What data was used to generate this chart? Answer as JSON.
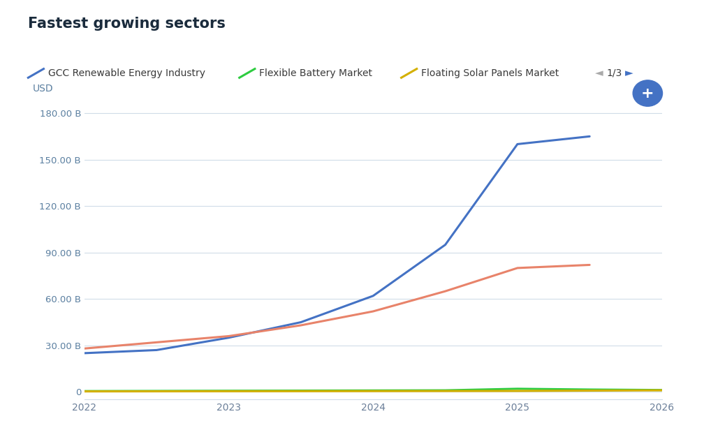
{
  "title": "Fastest growing sectors",
  "ylabel": "USD",
  "background_color": "#ffffff",
  "plot_bg_color": "#ffffff",
  "legend_entries": [
    {
      "label": "GCC Renewable Energy Industry",
      "color": "#4472c4"
    },
    {
      "label": "Flexible Battery Market",
      "color": "#2ecc40"
    },
    {
      "label": "Floating Solar Panels Market",
      "color": "#d4b000"
    }
  ],
  "page_indicator": "1/3",
  "yticks": [
    0,
    30,
    60,
    90,
    120,
    150,
    180
  ],
  "ytick_labels": [
    "0",
    "30.00 B",
    "60.00 B",
    "90.00 B",
    "120.00 B",
    "150.00 B",
    "180.00 B"
  ],
  "xticks": [
    2022,
    2023,
    2024,
    2025,
    2026
  ],
  "xlim": [
    2022,
    2026
  ],
  "ylim": [
    -5,
    190
  ],
  "series": [
    {
      "name": "GCC Renewable Energy Industry",
      "color": "#4472c4",
      "x": [
        2022,
        2022.5,
        2023,
        2023.5,
        2024,
        2024.5,
        2025,
        2025.5
      ],
      "y": [
        25,
        27,
        35,
        45,
        62,
        95,
        160,
        165
      ]
    },
    {
      "name": "unknown_orange",
      "color": "#e8836a",
      "x": [
        2022,
        2022.5,
        2023,
        2023.5,
        2024,
        2024.5,
        2025,
        2025.5
      ],
      "y": [
        28,
        32,
        36,
        43,
        52,
        65,
        80,
        82
      ]
    },
    {
      "name": "Flexible Battery Market",
      "color": "#2ecc40",
      "x": [
        2022,
        2022.5,
        2023,
        2023.5,
        2024,
        2024.5,
        2025,
        2025.5,
        2026
      ],
      "y": [
        0.5,
        0.6,
        0.7,
        0.8,
        0.9,
        1.0,
        2.0,
        1.5,
        1.2
      ]
    },
    {
      "name": "Floating Solar Panels Market",
      "color": "#d4b000",
      "x": [
        2022,
        2022.5,
        2023,
        2023.5,
        2024,
        2024.5,
        2025,
        2025.5,
        2026
      ],
      "y": [
        0.3,
        0.35,
        0.4,
        0.45,
        0.5,
        0.55,
        0.6,
        0.8,
        1.0
      ]
    }
  ],
  "grid_color": "#d0dce8",
  "tick_color": "#6b7f99",
  "title_color": "#1a2b3c",
  "title_fontsize": 15,
  "axis_label_color": "#5a7fa0",
  "legend_fontsize": 10
}
